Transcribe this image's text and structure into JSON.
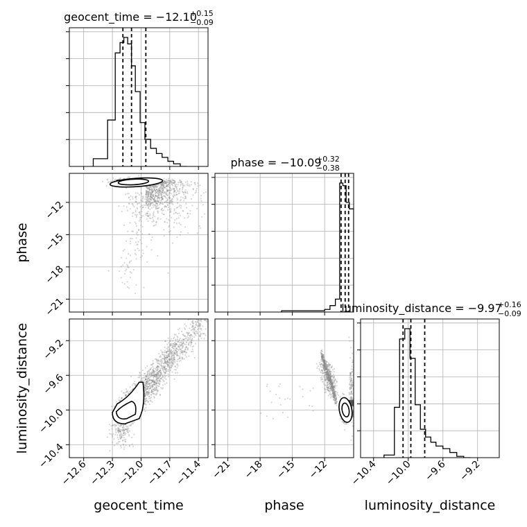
{
  "chart_data": {
    "type": "corner",
    "parameters": [
      "geocent_time",
      "phase",
      "luminosity_distance"
    ],
    "panels": {
      "geocent_time": {
        "title": "geocent_time = −12.10",
        "title_plus": "+0.15",
        "title_minus": "−0.09",
        "median": -12.1,
        "quantiles": [
          -12.19,
          -12.1,
          -11.95
        ],
        "range": [
          -12.75,
          -11.3
        ],
        "ticks": [
          -12.6,
          -12.3,
          -12.0,
          -11.7,
          -11.4
        ],
        "tick_labels": [
          "−12.6",
          "−12.3",
          "−12.0",
          "−11.7",
          "−11.4"
        ],
        "hist_edges": [
          -12.5,
          -12.35,
          -12.27,
          -12.22,
          -12.18,
          -12.14,
          -12.1,
          -12.06,
          -12.01,
          -11.96,
          -11.9,
          -11.84,
          -11.78,
          -11.72,
          -11.66,
          -11.59,
          -11.52
        ],
        "hist_counts": [
          0.06,
          0.36,
          0.88,
          0.96,
          1.0,
          0.95,
          0.78,
          0.58,
          0.34,
          0.21,
          0.14,
          0.1,
          0.07,
          0.04,
          0.02,
          0.0
        ]
      },
      "phase": {
        "title": "phase = −10.09",
        "title_plus": "+0.32",
        "title_minus": "−0.38",
        "median": -10.09,
        "quantiles": [
          -10.47,
          -10.09,
          -9.77
        ],
        "range": [
          -22.2,
          -9.3
        ],
        "ticks": [
          -21,
          -18,
          -15,
          -12
        ],
        "tick_labels": [
          "−21",
          "−18",
          "−15",
          "−12"
        ],
        "hist_edges": [
          -16.0,
          -12.0,
          -11.5,
          -11.0,
          -10.6,
          -10.3,
          -10.0,
          -9.7,
          -9.3
        ],
        "hist_counts": [
          0.01,
          0.02,
          0.05,
          0.1,
          1.0,
          0.98,
          0.85,
          0.8
        ]
      },
      "luminosity_distance": {
        "title": "luminosity_distance = −9.97",
        "title_plus": "+0.16",
        "title_minus": "−0.09",
        "median": -9.97,
        "quantiles": [
          -10.06,
          -9.97,
          -9.81
        ],
        "range": [
          -10.55,
          -8.95
        ],
        "ticks": [
          -10.4,
          -10.0,
          -9.6,
          -9.2
        ],
        "tick_labels": [
          "−10.4",
          "−10.0",
          "−9.6",
          "−9.2"
        ],
        "hist_edges": [
          -10.28,
          -10.16,
          -10.1,
          -10.04,
          -9.98,
          -9.92,
          -9.86,
          -9.8,
          -9.74,
          -9.68,
          -9.6,
          -9.52,
          -9.44,
          -9.36,
          -9.28
        ],
        "hist_counts": [
          0.02,
          0.39,
          0.92,
          1.0,
          0.77,
          0.41,
          0.22,
          0.16,
          0.12,
          0.09,
          0.07,
          0.04,
          0.01,
          0.0
        ]
      }
    },
    "axis_labels": {
      "x": [
        "geocent_time",
        "phase",
        "luminosity_distance"
      ],
      "y": [
        "phase",
        "luminosity_distance"
      ]
    },
    "y_ticks": {
      "phase": {
        "ticks": [
          -12,
          -15,
          -18,
          -21
        ],
        "tick_labels": [
          "−12",
          "−15",
          "−18",
          "−21"
        ]
      },
      "luminosity_distance": {
        "ticks": [
          -9.2,
          -9.6,
          -10.0,
          -10.4
        ],
        "tick_labels": [
          "−9.2",
          "−9.6",
          "−10.0",
          "−10.4"
        ]
      }
    },
    "grid": true,
    "colors": {
      "points": "#999999",
      "lines": "#000000"
    }
  }
}
